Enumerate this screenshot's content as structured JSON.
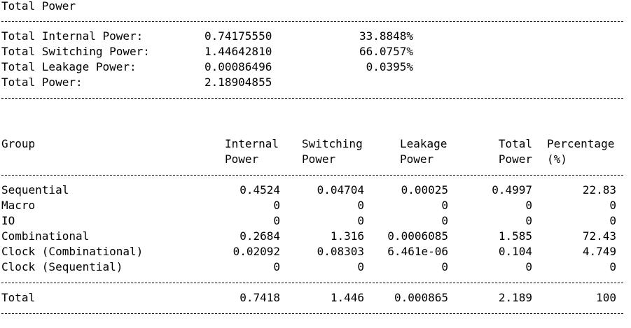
{
  "report": {
    "title": "Total Power",
    "summary": {
      "internal": {
        "label": "Total Internal Power:",
        "value": "0.74175550",
        "percent": "33.8848%"
      },
      "switching": {
        "label": "Total Switching Power:",
        "value": "1.44642810",
        "percent": "66.0757%"
      },
      "leakage": {
        "label": "Total Leakage Power:",
        "value": "0.00086496",
        "percent": "0.0395%"
      },
      "total": {
        "label": "Total Power:",
        "value": "2.18904855"
      }
    },
    "table": {
      "headers": {
        "group": "Group",
        "internal": [
          "Internal",
          "Power"
        ],
        "switching": [
          "Switching",
          "Power"
        ],
        "leakage": [
          "Leakage",
          "Power"
        ],
        "total": [
          "Total",
          "Power"
        ],
        "percentage": [
          "Percentage",
          "(%)"
        ]
      },
      "rows": [
        {
          "group": "Sequential",
          "internal": "0.4524",
          "switching": "0.04704",
          "leakage": "0.00025",
          "total": "0.4997",
          "percentage": "22.83"
        },
        {
          "group": "Macro",
          "internal": "0",
          "switching": "0",
          "leakage": "0",
          "total": "0",
          "percentage": "0"
        },
        {
          "group": "IO",
          "internal": "0",
          "switching": "0",
          "leakage": "0",
          "total": "0",
          "percentage": "0"
        },
        {
          "group": "Combinational",
          "internal": "0.2684",
          "switching": "1.316",
          "leakage": "0.0006085",
          "total": "1.585",
          "percentage": "72.43"
        },
        {
          "group": "Clock (Combinational)",
          "internal": "0.02092",
          "switching": "0.08303",
          "leakage": "6.461e-06",
          "total": "0.104",
          "percentage": "4.749"
        },
        {
          "group": "Clock (Sequential)",
          "internal": "0",
          "switching": "0",
          "leakage": "0",
          "total": "0",
          "percentage": "0"
        }
      ],
      "total_row": {
        "group": "Total",
        "internal": "0.7418",
        "switching": "1.446",
        "leakage": "0.000865",
        "total": "2.189",
        "percentage": "100"
      }
    }
  }
}
